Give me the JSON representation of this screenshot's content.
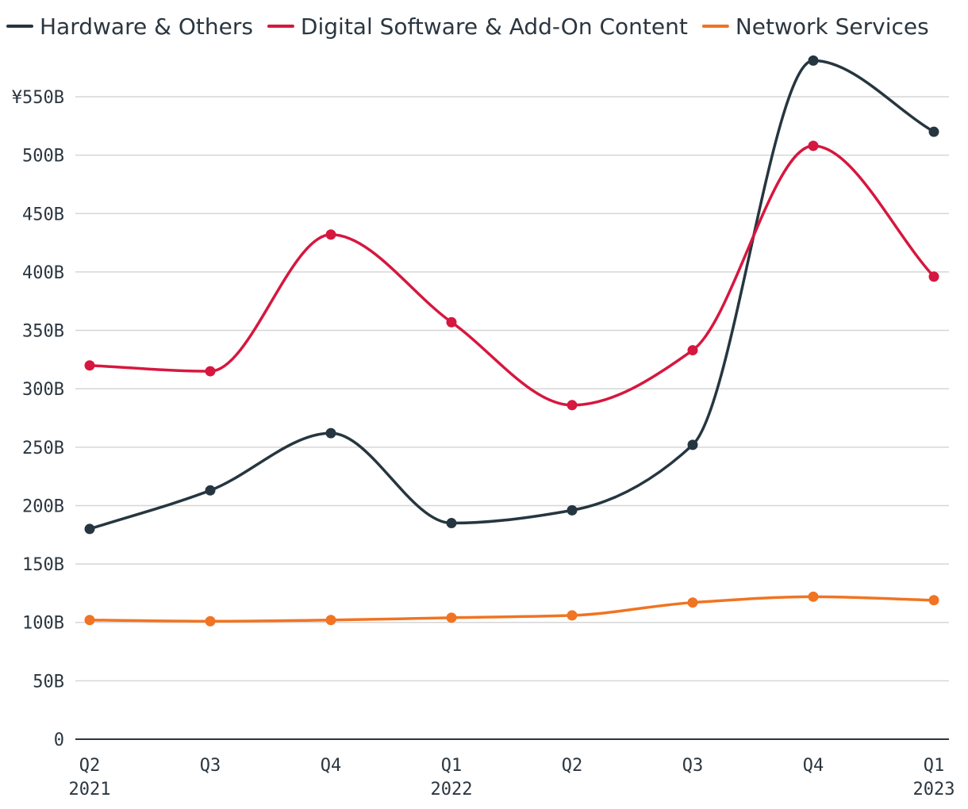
{
  "chart_data": {
    "type": "line",
    "title": "",
    "xlabel": "",
    "ylabel": "",
    "ylim": [
      0,
      580
    ],
    "grid": true,
    "legend_position": "top-left",
    "y_ticks": [
      0,
      50,
      100,
      150,
      200,
      250,
      300,
      350,
      400,
      450,
      500,
      550
    ],
    "y_tick_labels": [
      "0",
      "50B",
      "100B",
      "150B",
      "200B",
      "250B",
      "300B",
      "350B",
      "400B",
      "450B",
      "500B",
      "¥550B"
    ],
    "categories": [
      "Q2",
      "Q3",
      "Q4",
      "Q1",
      "Q2",
      "Q3",
      "Q4",
      "Q1"
    ],
    "category_years": [
      "2021",
      "",
      "",
      "2022",
      "",
      "",
      "",
      "2023"
    ],
    "series": [
      {
        "name": "Hardware & Others",
        "color": "#263640",
        "values": [
          180,
          213,
          262,
          185,
          196,
          252,
          581,
          520
        ]
      },
      {
        "name": "Digital Software & Add-On Content",
        "color": "#d6173f",
        "values": [
          320,
          315,
          432,
          357,
          286,
          333,
          508,
          396
        ]
      },
      {
        "name": "Network Services",
        "color": "#f07422",
        "values": [
          102,
          101,
          102,
          104,
          106,
          117,
          122,
          119
        ]
      }
    ]
  }
}
